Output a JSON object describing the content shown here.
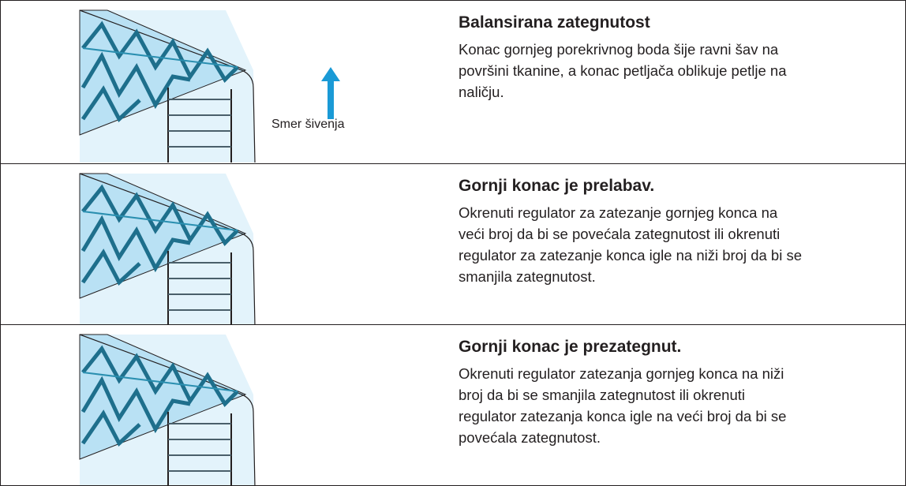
{
  "rows": [
    {
      "heading": "Balansirana zategnutost",
      "lines": [
        "Konac gornjeg porekrivnog boda šije ravni šav na",
        "površini tkanine, a konac petljača oblikuje petlje na",
        "naličju."
      ],
      "label": "Smer šivenja"
    },
    {
      "heading": "Gornji konac je prelabav.",
      "lines": [
        "Okrenuti regulator za zatezanje gornjeg konca na",
        "veći broj da bi se povećala zategnutost ili okrenuti",
        "regulator za zatezanje konca igle na niži broj da bi se",
        "smanjila zategnutost."
      ]
    },
    {
      "heading": "Gornji konac je prezategnut.",
      "lines": [
        "Okrenuti regulator zatezanja gornjeg konca na niži",
        "broj da bi se smanjila zategnutost ili okrenuti",
        "regulator zatezanja konca igle na veći broj da bi se",
        "povećala zategnutost."
      ]
    }
  ]
}
